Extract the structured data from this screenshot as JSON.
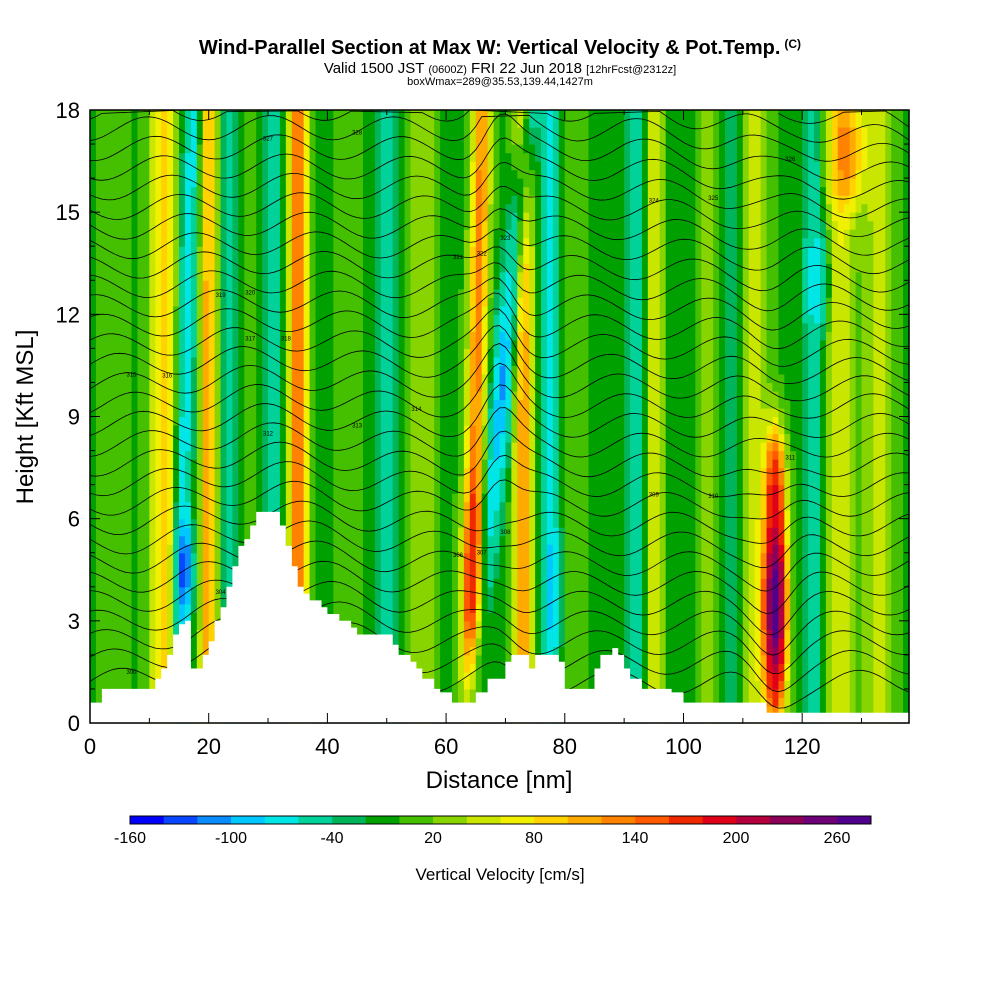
{
  "header": {
    "title": "Wind-Parallel Section at Max W: Vertical Velocity & Pot.Temp.",
    "title_mark": "(C)",
    "valid_prefix": "Valid 1500 JST",
    "valid_utc": "(0600Z)",
    "valid_date": "FRI 22 Jun 2018",
    "forecast": "[12hrFcst@2312z]",
    "box_info": "boxWmax=289@35.53,139.44,1427m"
  },
  "chart_data": {
    "type": "heatmap",
    "xlabel": "Distance [nm]",
    "ylabel": "Height [Kft MSL]",
    "xlim": [
      0,
      138
    ],
    "ylim": [
      0,
      18
    ],
    "x_ticks": [
      "0",
      "20",
      "40",
      "60",
      "80",
      "100",
      "120"
    ],
    "y_ticks": [
      "0",
      "3",
      "6",
      "9",
      "12",
      "15",
      "18"
    ],
    "colorbar": {
      "title": "Vertical Velocity [cm/s]",
      "tick_labels": [
        "-160",
        "-100",
        "-40",
        "20",
        "80",
        "140",
        "200",
        "260"
      ],
      "colors": [
        "#0000ff",
        "#0a46ff",
        "#0a8cff",
        "#00c8ff",
        "#00e6e6",
        "#00d29a",
        "#00b45a",
        "#00a000",
        "#44c000",
        "#88d400",
        "#c8e600",
        "#f0f000",
        "#ffd200",
        "#ffaa00",
        "#ff8200",
        "#ff5a00",
        "#f02800",
        "#e0001a",
        "#b4003c",
        "#8c005a",
        "#6e0078",
        "#50008c"
      ]
    },
    "updrafts": [
      {
        "x": 115.5,
        "peak_height_kft": 3.5,
        "w_max_cm_s": 289
      },
      {
        "x": 65,
        "peak_height_kft": 4,
        "w_max_cm_s": 140
      },
      {
        "x": 35,
        "peak_height_kft": 13,
        "w_max_cm_s": 110
      },
      {
        "x": 20,
        "peak_height_kft": 13,
        "w_max_cm_s": 100
      },
      {
        "x": 73,
        "peak_height_kft": 13,
        "w_max_cm_s": 90
      }
    ],
    "downdrafts": [
      {
        "x": 16,
        "peak_height_kft": 4.5,
        "w_min_cm_s": -160
      },
      {
        "x": 78,
        "peak_height_kft": 4,
        "w_min_cm_s": -100
      },
      {
        "x": 69,
        "peak_height_kft": 10,
        "w_min_cm_s": -80
      }
    ],
    "terrain_kft": [
      [
        0,
        0.6
      ],
      [
        2,
        1
      ],
      [
        11,
        1
      ],
      [
        11,
        1.3
      ],
      [
        12,
        1.6
      ],
      [
        13,
        2
      ],
      [
        14,
        2.6
      ],
      [
        15,
        2.9
      ],
      [
        16,
        3
      ],
      [
        17,
        2.4
      ],
      [
        17,
        1.6
      ],
      [
        19,
        1.6
      ],
      [
        19,
        2
      ],
      [
        20,
        2.4
      ],
      [
        21,
        3
      ],
      [
        22,
        3.4
      ],
      [
        23,
        4
      ],
      [
        24,
        4.6
      ],
      [
        25,
        5.2
      ],
      [
        26,
        5.4
      ],
      [
        27,
        5.8
      ],
      [
        28,
        6.2
      ],
      [
        31,
        6.2
      ],
      [
        32,
        5.8
      ],
      [
        33,
        5.2
      ],
      [
        34,
        4.6
      ],
      [
        35,
        4
      ],
      [
        36,
        3.8
      ],
      [
        37,
        3.6
      ],
      [
        39,
        3.4
      ],
      [
        40,
        3.2
      ],
      [
        42,
        3
      ],
      [
        44,
        2.8
      ],
      [
        45,
        2.6
      ],
      [
        47,
        2.6
      ],
      [
        50,
        2.6
      ],
      [
        51,
        2.3
      ],
      [
        52,
        2
      ],
      [
        54,
        1.8
      ],
      [
        55,
        1.6
      ],
      [
        56,
        1.3
      ],
      [
        58,
        1
      ],
      [
        59,
        0.9
      ],
      [
        61,
        0.6
      ],
      [
        64,
        0.6
      ],
      [
        65,
        0.9
      ],
      [
        67,
        1.3
      ],
      [
        70,
        1.8
      ],
      [
        71,
        2
      ],
      [
        73,
        2
      ],
      [
        74,
        1.6
      ],
      [
        75,
        2
      ],
      [
        78,
        2
      ],
      [
        79,
        1.8
      ],
      [
        80,
        1
      ],
      [
        84,
        1
      ],
      [
        85,
        1.6
      ],
      [
        86,
        2
      ],
      [
        88,
        2.2
      ],
      [
        89,
        2
      ],
      [
        90,
        1.6
      ],
      [
        91,
        1.3
      ],
      [
        92,
        1.3
      ],
      [
        93,
        1
      ],
      [
        97,
        1
      ],
      [
        98,
        0.9
      ],
      [
        100,
        0.6
      ],
      [
        113,
        0.6
      ],
      [
        114,
        0.3
      ],
      [
        138,
        0.3
      ]
    ],
    "theta_labels_K": [
      "300",
      "301",
      "302",
      "303",
      "304",
      "305",
      "306",
      "307",
      "308",
      "309",
      "310",
      "311",
      "312",
      "313",
      "314",
      "315",
      "316",
      "317",
      "318",
      "319",
      "320",
      "321",
      "322",
      "323",
      "324",
      "325",
      "326",
      "327",
      "328",
      "329",
      "330"
    ]
  }
}
